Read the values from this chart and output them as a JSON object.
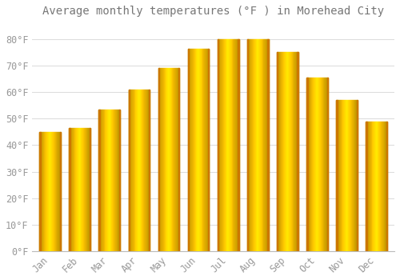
{
  "title": "Average monthly temperatures (°F ) in Morehead City",
  "months": [
    "Jan",
    "Feb",
    "Mar",
    "Apr",
    "May",
    "Jun",
    "Jul",
    "Aug",
    "Sep",
    "Oct",
    "Nov",
    "Dec"
  ],
  "values": [
    45,
    46.5,
    53.5,
    61,
    69,
    76.5,
    80,
    80,
    75,
    65.5,
    57,
    49
  ],
  "bar_color_main": "#FFBB33",
  "bar_color_left": "#F5A800",
  "bar_color_right": "#E89500",
  "background_color": "#FFFFFF",
  "grid_color": "#DDDDDD",
  "text_color": "#999999",
  "title_color": "#777777",
  "ylim": [
    0,
    86
  ],
  "yticks": [
    0,
    10,
    20,
    30,
    40,
    50,
    60,
    70,
    80
  ],
  "ytick_labels": [
    "0°F",
    "10°F",
    "20°F",
    "30°F",
    "40°F",
    "50°F",
    "60°F",
    "70°F",
    "80°F"
  ],
  "title_fontsize": 10,
  "tick_fontsize": 8.5
}
